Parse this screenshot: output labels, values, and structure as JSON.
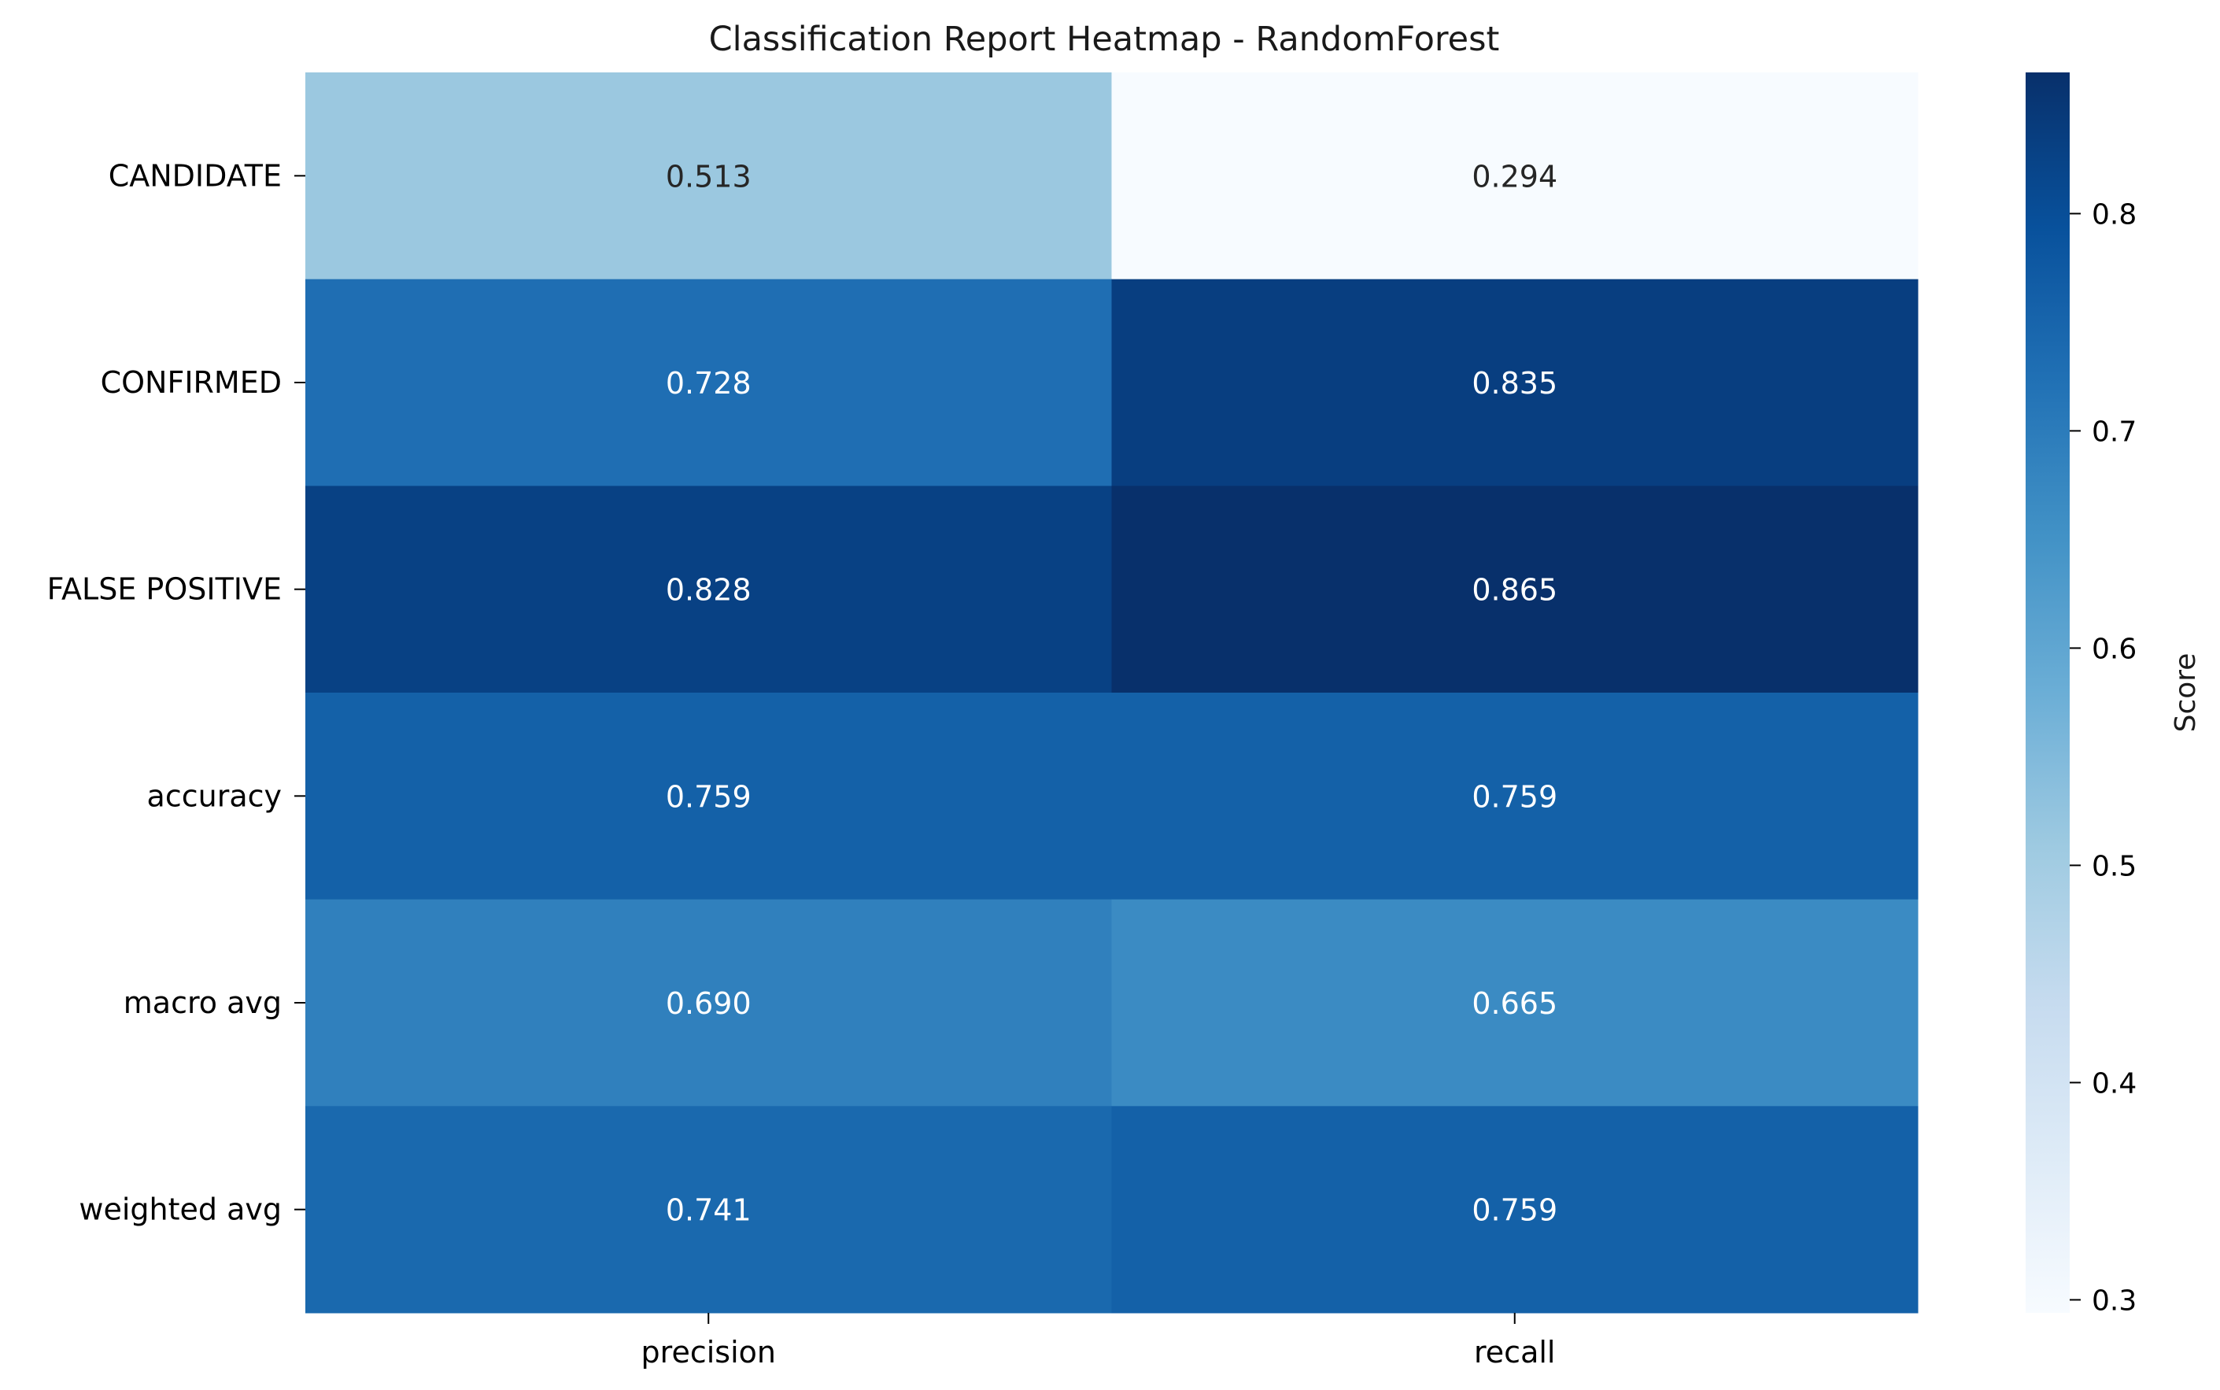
{
  "chart_data": {
    "type": "heatmap",
    "title": "Classification Report Heatmap - RandomForest",
    "rows": [
      "CANDIDATE",
      "CONFIRMED",
      "FALSE POSITIVE",
      "accuracy",
      "macro avg",
      "weighted avg"
    ],
    "columns": [
      "precision",
      "recall"
    ],
    "values": [
      [
        0.513,
        0.294
      ],
      [
        0.728,
        0.835
      ],
      [
        0.828,
        0.865
      ],
      [
        0.759,
        0.759
      ],
      [
        0.69,
        0.665
      ],
      [
        0.741,
        0.759
      ]
    ],
    "value_labels": [
      [
        "0.513",
        "0.294"
      ],
      [
        "0.728",
        "0.835"
      ],
      [
        "0.828",
        "0.865"
      ],
      [
        "0.759",
        "0.759"
      ],
      [
        "0.690",
        "0.665"
      ],
      [
        "0.741",
        "0.759"
      ]
    ],
    "colormap": "Blues",
    "vmin": 0.294,
    "vmax": 0.865,
    "colorbar": {
      "label": "Score",
      "ticks": [
        0.3,
        0.4,
        0.5,
        0.6,
        0.7,
        0.8
      ],
      "tick_labels": [
        "0.3",
        "0.4",
        "0.5",
        "0.6",
        "0.7",
        "0.8"
      ]
    }
  }
}
